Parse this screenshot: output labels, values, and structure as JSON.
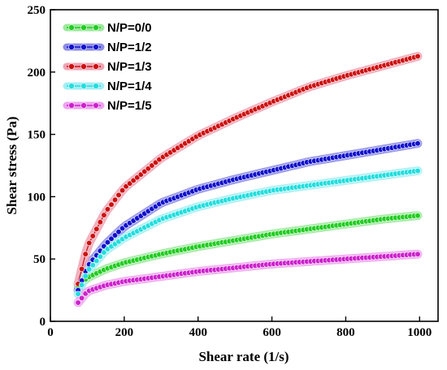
{
  "chart_data": {
    "type": "line",
    "xlabel": "Shear rate (1/s)",
    "ylabel": "Shear stress (Pa)",
    "xlim": [
      0,
      1050
    ],
    "ylim": [
      0,
      250
    ],
    "xticks": [
      0,
      200,
      400,
      600,
      800,
      1000
    ],
    "yticks": [
      0,
      50,
      100,
      150,
      200,
      250
    ],
    "legend_position": "top-left",
    "grid": false,
    "series": [
      {
        "name": "N/P=0/0",
        "color": "#22cc22",
        "band_color": "#9be89b",
        "x": [
          75,
          100,
          150,
          200,
          300,
          400,
          500,
          600,
          700,
          800,
          900,
          1000
        ],
        "y": [
          28,
          35,
          42,
          47,
          54,
          60,
          65,
          70,
          74,
          78,
          82,
          85
        ]
      },
      {
        "name": "N/P=1/2",
        "color": "#1111cc",
        "band_color": "#8c8ce6",
        "x": [
          75,
          100,
          150,
          200,
          300,
          400,
          500,
          600,
          700,
          800,
          900,
          1000
        ],
        "y": [
          25,
          44,
          62,
          76,
          95,
          106,
          114,
          121,
          128,
          133,
          138,
          143
        ]
      },
      {
        "name": "N/P=1/3",
        "color": "#cc1111",
        "band_color": "#eea3b3",
        "x": [
          75,
          100,
          150,
          200,
          300,
          400,
          500,
          600,
          700,
          800,
          900,
          1000
        ],
        "y": [
          30,
          60,
          88,
          107,
          131,
          149,
          163,
          176,
          188,
          197,
          205,
          213
        ]
      },
      {
        "name": "N/P=1/4",
        "color": "#22dddd",
        "band_color": "#a3eef5",
        "x": [
          75,
          100,
          150,
          200,
          300,
          400,
          500,
          600,
          700,
          800,
          900,
          1000
        ],
        "y": [
          22,
          40,
          57,
          67,
          82,
          92,
          99,
          105,
          109,
          113,
          117,
          121
        ]
      },
      {
        "name": "N/P=1/5",
        "color": "#cc22cc",
        "band_color": "#eea3ee",
        "x": [
          75,
          100,
          150,
          200,
          300,
          400,
          500,
          600,
          700,
          800,
          900,
          1000
        ],
        "y": [
          15,
          24,
          29,
          32,
          36,
          40,
          43,
          46,
          48,
          50,
          52,
          54
        ]
      }
    ]
  }
}
